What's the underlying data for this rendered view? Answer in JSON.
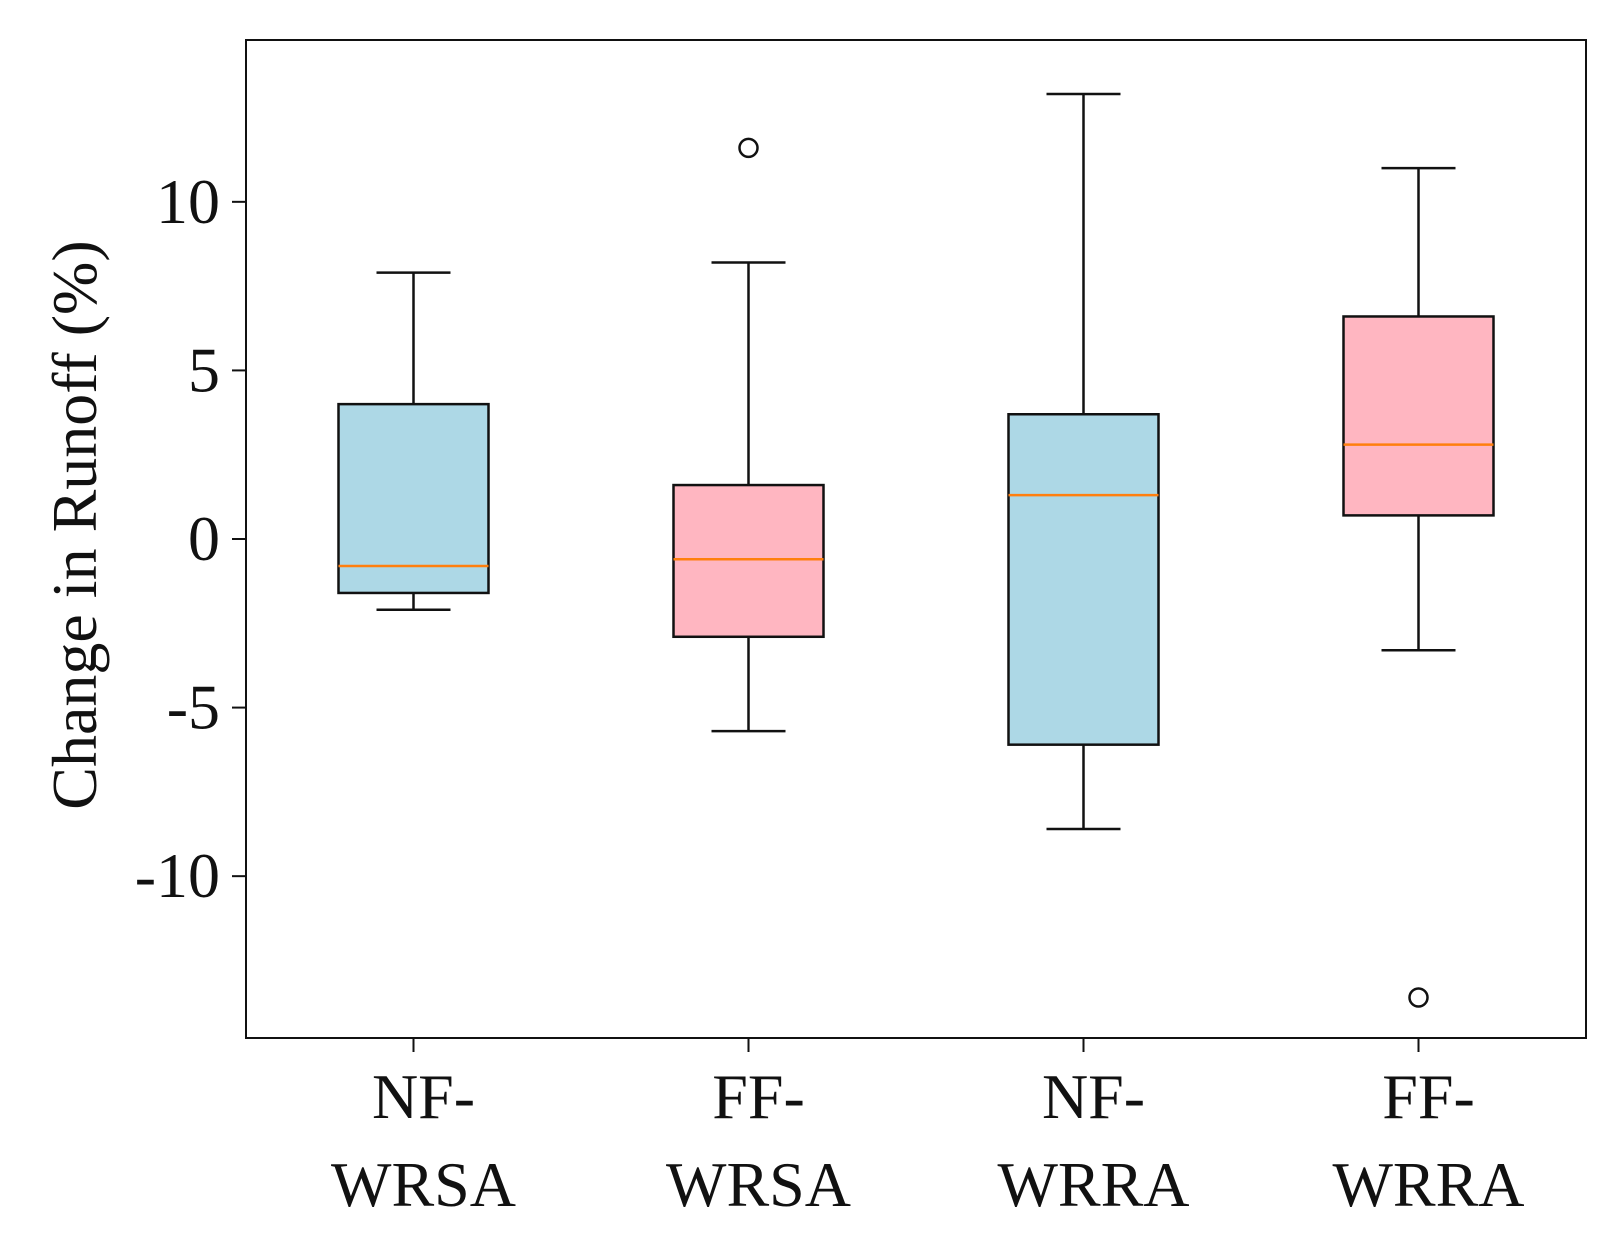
{
  "chart_data": {
    "type": "box",
    "title": "",
    "ylabel": "Change in Runoff (%)",
    "xlabel": "",
    "ylim": [
      -14.8,
      14.8
    ],
    "yticks": [
      10,
      5,
      0,
      -5,
      -10
    ],
    "ytick_labels": [
      "10",
      "5",
      "0",
      "-5",
      "-10"
    ],
    "grid": false,
    "legend": "none",
    "categories": [
      {
        "line1": "NF-",
        "line2": "WRSA"
      },
      {
        "line1": "FF-",
        "line2": "WRSA"
      },
      {
        "line1": "NF-",
        "line2": "WRRA"
      },
      {
        "line1": "FF-",
        "line2": "WRRA"
      }
    ],
    "boxes": [
      {
        "whisker_low": -2.1,
        "q1": -1.6,
        "median": -0.8,
        "q3": 4.0,
        "whisker_high": 7.9,
        "outliers": [],
        "color": "#add8e6"
      },
      {
        "whisker_low": -5.7,
        "q1": -2.9,
        "median": -0.6,
        "q3": 1.6,
        "whisker_high": 8.2,
        "outliers": [
          11.6
        ],
        "color": "#ffb6c1"
      },
      {
        "whisker_low": -8.6,
        "q1": -6.1,
        "median": 1.3,
        "q3": 3.7,
        "whisker_high": 13.2,
        "outliers": [],
        "color": "#add8e6"
      },
      {
        "whisker_low": -3.3,
        "q1": 0.7,
        "median": 2.8,
        "q3": 6.6,
        "whisker_high": 11.0,
        "outliers": [
          -13.6
        ],
        "color": "#ffb6c1"
      }
    ],
    "median_color": "#ff7f0e",
    "outline_color": "#111111"
  }
}
